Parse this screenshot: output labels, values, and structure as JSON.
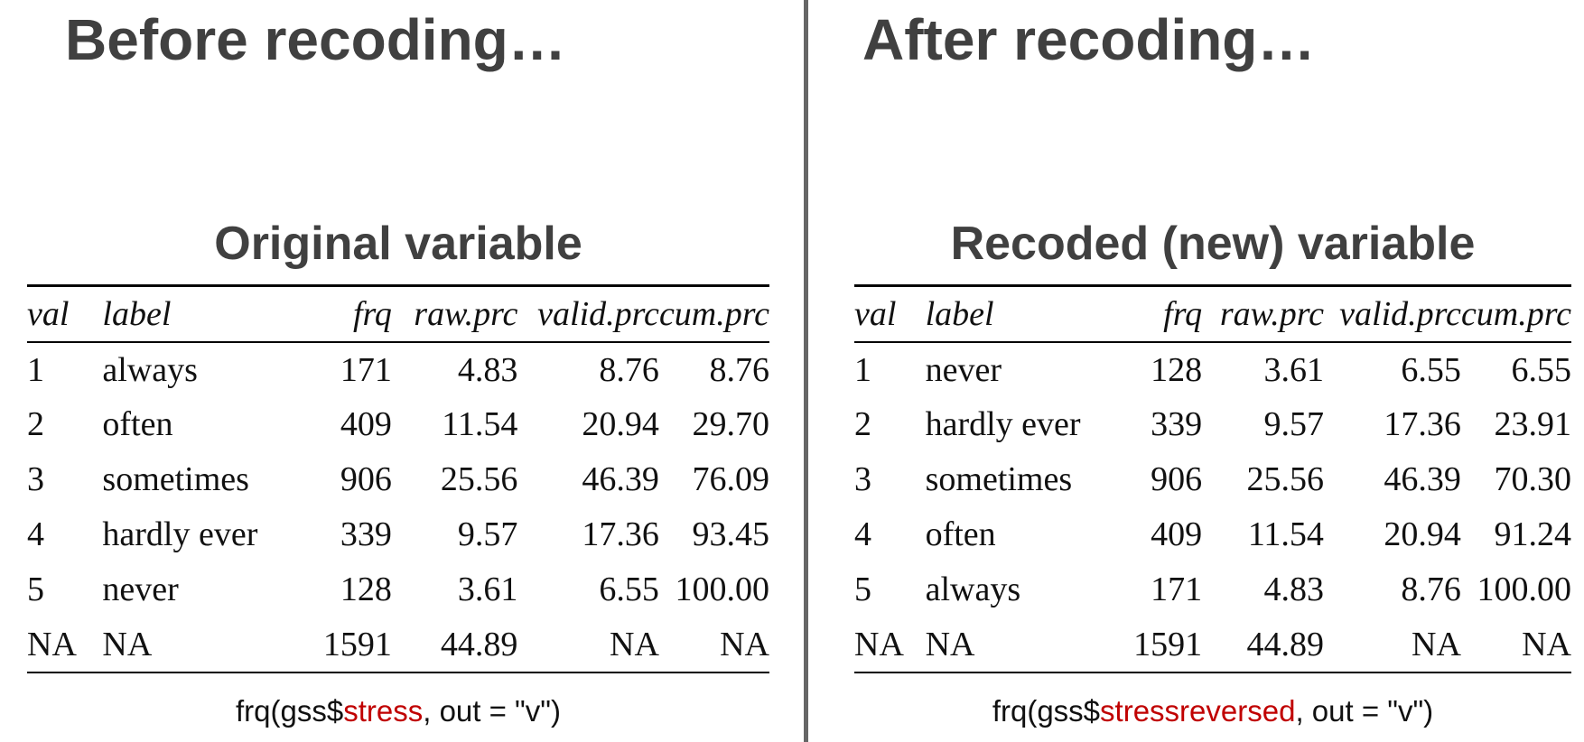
{
  "left": {
    "heading": "Before recoding…",
    "subtitle": "Original variable",
    "columns": [
      "val",
      "label",
      "frq",
      "raw.prc",
      "valid.prc",
      "cum.prc"
    ],
    "rows": [
      [
        "1",
        "always",
        "171",
        "4.83",
        "8.76",
        "8.76"
      ],
      [
        "2",
        "often",
        "409",
        "11.54",
        "20.94",
        "29.70"
      ],
      [
        "3",
        "sometimes",
        "906",
        "25.56",
        "46.39",
        "76.09"
      ],
      [
        "4",
        "hardly ever",
        "339",
        "9.57",
        "17.36",
        "93.45"
      ],
      [
        "5",
        "never",
        "128",
        "3.61",
        "6.55",
        "100.00"
      ],
      [
        "NA",
        "NA",
        "1591",
        "44.89",
        "NA",
        "NA"
      ]
    ],
    "code": {
      "prefix": "frq(gss$",
      "variable": "stress",
      "suffix": ", out = \"v\")"
    }
  },
  "right": {
    "heading": "After recoding…",
    "subtitle": "Recoded (new) variable",
    "columns": [
      "val",
      "label",
      "frq",
      "raw.prc",
      "valid.prc",
      "cum.prc"
    ],
    "rows": [
      [
        "1",
        "never",
        "128",
        "3.61",
        "6.55",
        "6.55"
      ],
      [
        "2",
        "hardly ever",
        "339",
        "9.57",
        "17.36",
        "23.91"
      ],
      [
        "3",
        "sometimes",
        "906",
        "25.56",
        "46.39",
        "70.30"
      ],
      [
        "4",
        "often",
        "409",
        "11.54",
        "20.94",
        "91.24"
      ],
      [
        "5",
        "always",
        "171",
        "4.83",
        "8.76",
        "100.00"
      ],
      [
        "NA",
        "NA",
        "1591",
        "44.89",
        "NA",
        "NA"
      ]
    ],
    "code": {
      "prefix": "frq(gss$",
      "variable": "stressreversed",
      "suffix": ", out = \"v\")"
    }
  },
  "colors": {
    "heading": "#404040",
    "highlight": "#c00000",
    "divider": "#666666"
  }
}
